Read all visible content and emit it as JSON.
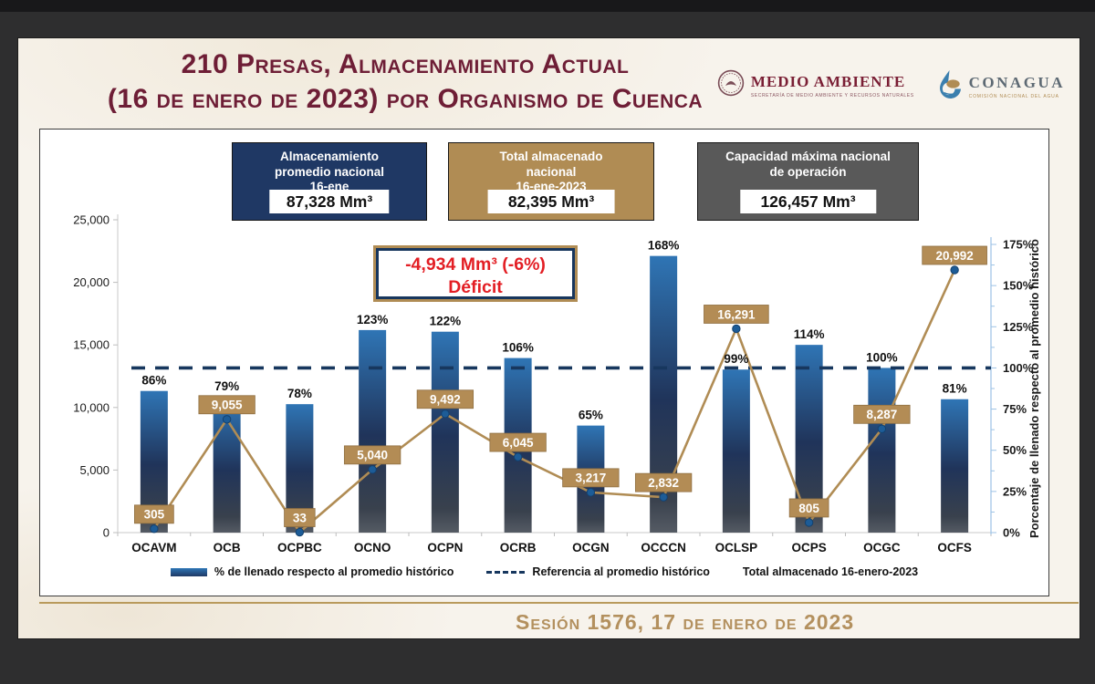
{
  "header": {
    "title_line1": "210 Presas, Almacenamiento Actual",
    "title_line2": "(16 de enero de 2023) por Organismo de Cuenca",
    "logos": {
      "medio_ambiente": {
        "name": "MEDIO AMBIENTE",
        "subtitle": "SECRETARÍA DE MEDIO AMBIENTE Y RECURSOS NATURALES"
      },
      "conagua": {
        "name": "CONAGUA",
        "subtitle": "COMISIÓN NACIONAL DEL AGUA"
      }
    }
  },
  "info_boxes": [
    {
      "id": "promedio-nacional",
      "lines": [
        "Almacenamiento",
        "promedio nacional",
        "16-ene"
      ],
      "value": "87,328 Mm³",
      "color": "#1f3864"
    },
    {
      "id": "total-almacenado",
      "lines": [
        "Total almacenado",
        "nacional",
        "16-ene-2023"
      ],
      "value": "82,395 Mm³",
      "color": "#b08c54"
    },
    {
      "id": "capacidad-maxima",
      "lines": [
        "Capacidad máxima nacional",
        "de operación"
      ],
      "value": "126,457 Mm³",
      "color": "#595959"
    }
  ],
  "deficit_box": {
    "line1": "-4,934 Mm³ (-6%)",
    "line2": "Déficit"
  },
  "chart_data": {
    "type": "bar",
    "title": "210 Presas, almacenamiento actual (16 de enero de 2023) por Organismo de Cuenca",
    "categories": [
      "OCAVM",
      "OCB",
      "OCPBC",
      "OCNO",
      "OCPN",
      "OCRB",
      "OCGN",
      "OCCCN",
      "OCLSP",
      "OCPS",
      "OCGC",
      "OCFS"
    ],
    "series": [
      {
        "name": "% de llenado respecto al promedio histórico",
        "type": "bar",
        "axis": "right",
        "unit": "%",
        "values": [
          86,
          79,
          78,
          123,
          122,
          106,
          65,
          168,
          99,
          114,
          100,
          81
        ]
      },
      {
        "name": "Total almacenado 16-enero-2023",
        "type": "line",
        "axis": "left",
        "unit": "Mm³",
        "values": [
          305,
          9055,
          33,
          5040,
          9492,
          6045,
          3217,
          2832,
          16291,
          805,
          8287,
          20992
        ],
        "labels": [
          "305",
          "9,055",
          "33",
          "5,040",
          "9,492",
          "6,045",
          "3,217",
          "2,832",
          "16,291",
          "805",
          "8,287",
          "20,992"
        ]
      },
      {
        "name": "Referencia al promedio histórico",
        "type": "dashed-reference",
        "axis": "right",
        "value": 100
      }
    ],
    "bar_pct_labels": [
      "86%",
      "79%",
      "78%",
      "123%",
      "122%",
      "106%",
      "65%",
      "168%",
      "99%",
      "114%",
      "100%",
      "81%"
    ],
    "left_axis": {
      "ticks": [
        "0",
        "5,000",
        "10,000",
        "15,000",
        "20,000",
        "25,000"
      ],
      "min": 0,
      "max": 25000
    },
    "right_axis": {
      "ticks": [
        "0%",
        "25%",
        "50%",
        "75%",
        "100%",
        "125%",
        "150%",
        "175%"
      ],
      "min": 0,
      "max": 175,
      "label": "Porcentaje de llenado respecto al promedio histórico"
    },
    "grid": false,
    "legend_position": "bottom"
  },
  "legend": [
    {
      "label": "% de llenado respecto al promedio histórico",
      "swatch": "bar"
    },
    {
      "label": "Referencia al promedio histórico",
      "swatch": "dashed"
    },
    {
      "label": "Total almacenado 16-enero-2023",
      "swatch": "none"
    }
  ],
  "footer": {
    "session": "Sesión 1576, 17 de enero de 2023"
  },
  "colors": {
    "title_maroon": "#6e1e36",
    "navy": "#1f3864",
    "gold": "#b08c54",
    "gray": "#595959",
    "deficit_red": "#e31e24",
    "bar_blue_top": "#2f75b5",
    "bar_dark_bottom": "#4c545e",
    "line_gold": "#b08c54",
    "point_blue": "#1d5c97",
    "reference_navy": "#17375e",
    "footer_gold": "#b3905e",
    "background_dark": "#2e2e2f"
  }
}
